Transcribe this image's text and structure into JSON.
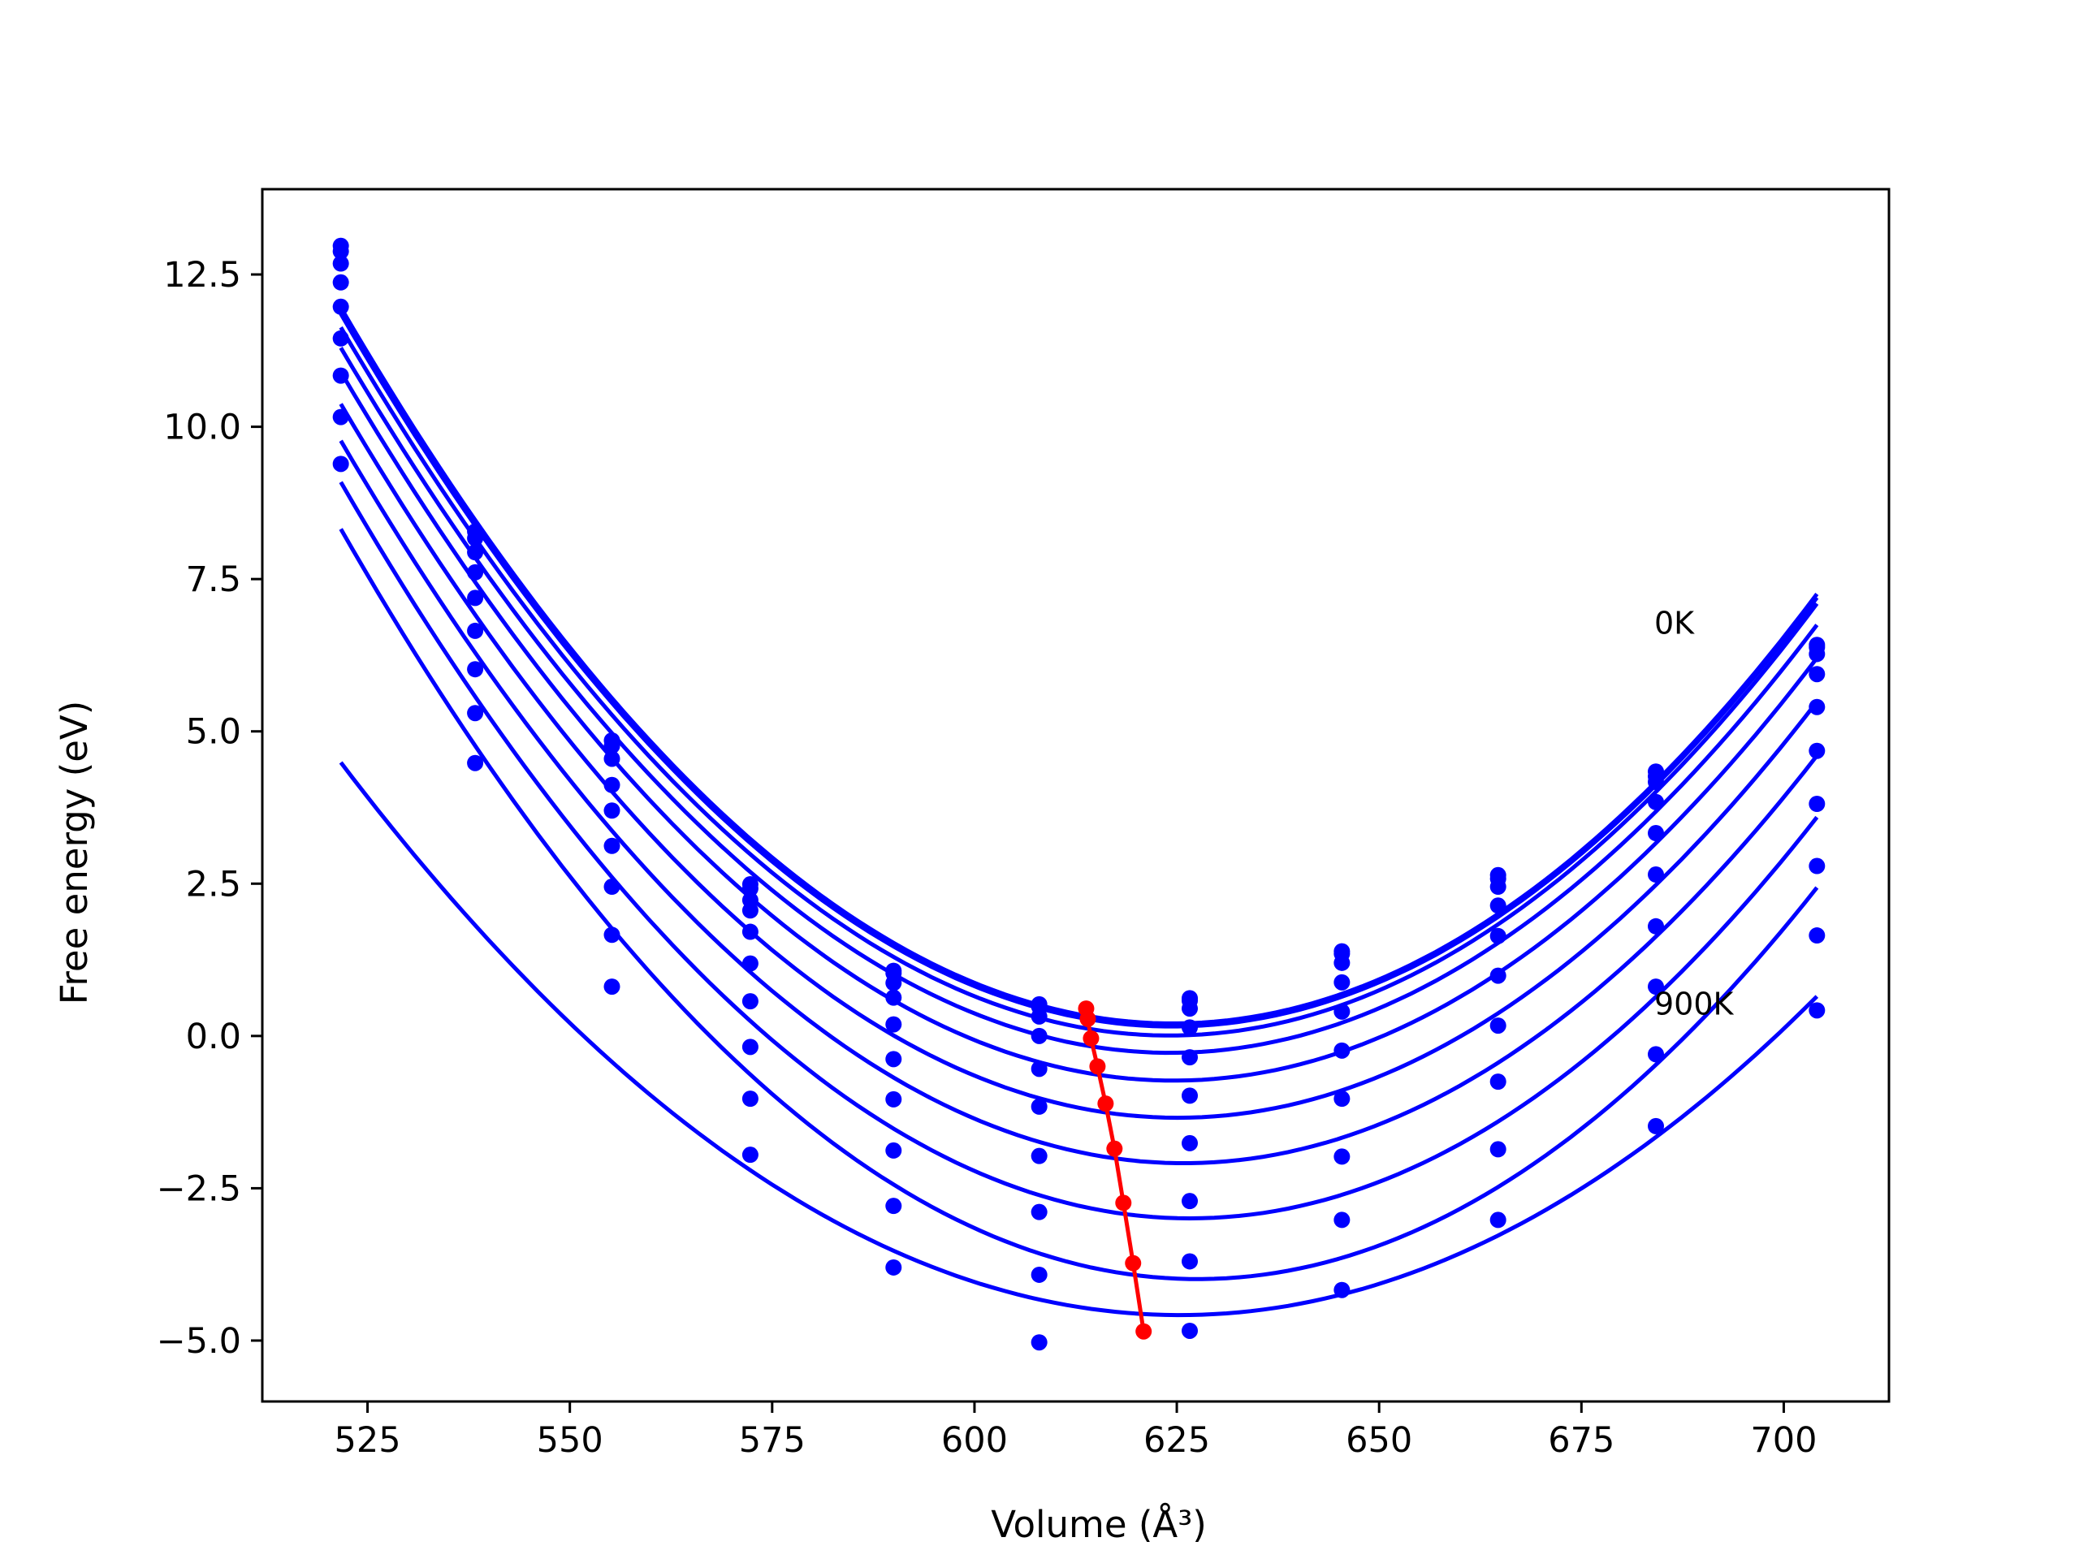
{
  "chart_data": {
    "type": "line",
    "title": "",
    "xlabel": "Volume (Å³)",
    "ylabel": "Free energy (eV)",
    "xlim": [
      512,
      713
    ],
    "ylim": [
      -6,
      13.9
    ],
    "xticks": [
      525,
      550,
      575,
      600,
      625,
      650,
      675,
      700
    ],
    "yticks": [
      -5.0,
      -2.5,
      0.0,
      2.5,
      5.0,
      7.5,
      10.0,
      12.5
    ],
    "grid": false,
    "volumes": [
      521.7,
      538.3,
      555.2,
      572.3,
      590.0,
      608.0,
      626.6,
      645.4,
      664.7,
      684.2,
      704.1
    ],
    "series_color": "#0000ff",
    "minimum_color": "#ff0000",
    "annotations": [
      {
        "text": "0K",
        "x": 684,
        "y": 6.6
      },
      {
        "text": "900K",
        "x": 684,
        "y": 0.35
      }
    ],
    "series": [
      {
        "values": [
          12.97,
          8.28,
          4.85,
          2.49,
          1.07,
          0.52,
          0.62,
          1.39,
          2.64,
          4.34,
          6.42
        ]
      },
      {
        "values": [
          12.88,
          8.17,
          4.76,
          2.42,
          1.03,
          0.48,
          0.58,
          1.35,
          2.58,
          4.26,
          6.38
        ]
      },
      {
        "values": [
          12.68,
          7.94,
          4.55,
          2.23,
          0.87,
          0.32,
          0.45,
          1.2,
          2.45,
          4.17,
          6.27
        ]
      },
      {
        "values": [
          12.37,
          7.61,
          4.12,
          2.06,
          0.63,
          0.0,
          0.14,
          0.88,
          2.14,
          3.84,
          5.94
        ]
      },
      {
        "values": [
          11.97,
          7.19,
          3.7,
          1.71,
          0.19,
          -0.54,
          -0.35,
          0.4,
          1.64,
          3.33,
          5.4
        ]
      },
      {
        "values": [
          11.45,
          6.65,
          3.12,
          1.19,
          -0.38,
          -1.16,
          -0.98,
          -0.24,
          0.99,
          2.65,
          4.68
        ]
      },
      {
        "values": [
          10.84,
          6.02,
          2.45,
          0.57,
          -1.04,
          -1.97,
          -1.76,
          -1.03,
          0.17,
          1.8,
          3.81
        ]
      },
      {
        "values": [
          10.16,
          5.3,
          1.66,
          -0.18,
          -1.88,
          -2.89,
          -2.71,
          -1.98,
          -0.75,
          0.81,
          2.79
        ]
      },
      {
        "values": [
          9.39,
          4.48,
          0.81,
          -1.03,
          -2.79,
          -3.92,
          -3.7,
          -3.02,
          -1.86,
          -0.3,
          1.65
        ]
      },
      {
        "values": [
          null,
          null,
          null,
          -1.95,
          -3.8,
          -5.03,
          -4.84,
          -4.17,
          -3.02,
          -1.48,
          0.42
        ]
      }
    ],
    "equilibrium": {
      "x": [
        613.8,
        614.0,
        614.4,
        615.2,
        616.2,
        617.3,
        618.4,
        619.6,
        620.9
      ],
      "y": [
        0.45,
        0.28,
        -0.04,
        -0.5,
        -1.11,
        -1.85,
        -2.74,
        -3.73,
        -4.85
      ]
    }
  }
}
